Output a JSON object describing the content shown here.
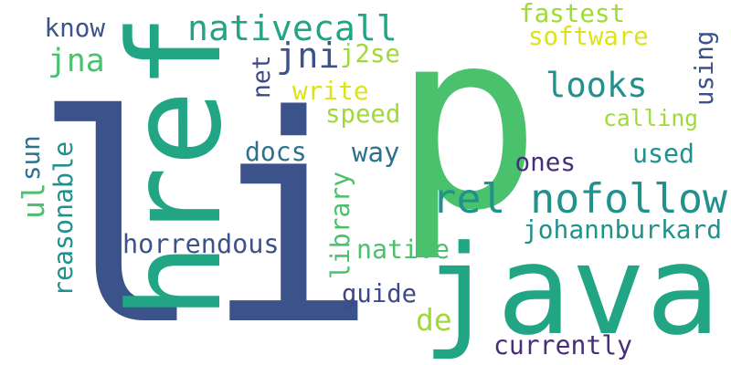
{
  "words": [
    {
      "text": "li",
      "color": "#3b528b"
    },
    {
      "text": "p",
      "color": "#4ac16d"
    },
    {
      "text": "href",
      "color": "#21a585"
    },
    {
      "text": "java",
      "color": "#21a585"
    },
    {
      "text": "rel nofollow",
      "color": "#21918c"
    },
    {
      "text": "nativecall",
      "color": "#21a585"
    },
    {
      "text": "jni",
      "color": "#3b528b"
    },
    {
      "text": "jna",
      "color": "#4ac16d"
    },
    {
      "text": "looks",
      "color": "#21918c"
    },
    {
      "text": "know",
      "color": "#3b528b"
    },
    {
      "text": "fastest",
      "color": "#a0da39"
    },
    {
      "text": "software",
      "color": "#dde318"
    },
    {
      "text": "j2se",
      "color": "#a0da39"
    },
    {
      "text": "net",
      "color": "#3e4989"
    },
    {
      "text": "write",
      "color": "#dde318"
    },
    {
      "text": "speed",
      "color": "#a0da39"
    },
    {
      "text": "calling",
      "color": "#a0da39"
    },
    {
      "text": "using",
      "color": "#3b528b"
    },
    {
      "text": "docs",
      "color": "#2c728e"
    },
    {
      "text": "way",
      "color": "#2c728e"
    },
    {
      "text": "used",
      "color": "#21918c"
    },
    {
      "text": "ones",
      "color": "#472d7b"
    },
    {
      "text": "sun",
      "color": "#2c728e"
    },
    {
      "text": "ul",
      "color": "#4ac16d"
    },
    {
      "text": "reasonable",
      "color": "#21918c"
    },
    {
      "text": "library",
      "color": "#4ac16d"
    },
    {
      "text": "johannburkard",
      "color": "#21918c"
    },
    {
      "text": "horrendous",
      "color": "#3b528b"
    },
    {
      "text": "native",
      "color": "#4ac16d"
    },
    {
      "text": "guide",
      "color": "#3e4989"
    },
    {
      "text": "de",
      "color": "#a0da39"
    },
    {
      "text": "currently",
      "color": "#472d7b"
    }
  ]
}
